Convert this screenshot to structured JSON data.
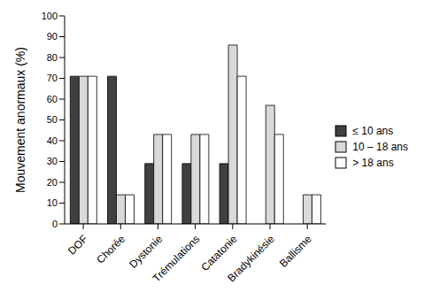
{
  "chart_data": {
    "type": "bar",
    "y_label": "Mouvement anormaux (%)",
    "categories": [
      "DOF",
      "Chorée",
      "Dystonie",
      "Trémulations",
      "Catatonie",
      "Bradykinésie",
      "Ballisme"
    ],
    "series": [
      {
        "name": "≤ 10 ans",
        "color": "#404040",
        "values": [
          71,
          71,
          29,
          29,
          29,
          0,
          0
        ]
      },
      {
        "name": "10 – 18 ans",
        "color": "#d9d9d9",
        "values": [
          71,
          14,
          43,
          43,
          86,
          57,
          14
        ]
      },
      {
        "name": "> 18 ans",
        "color": "#ffffff",
        "values": [
          71,
          14,
          43,
          43,
          71,
          43,
          14
        ]
      }
    ],
    "ylim": [
      0,
      100
    ],
    "yticks": [
      0,
      10,
      20,
      30,
      40,
      50,
      60,
      70,
      80,
      90,
      100
    ],
    "grid": false,
    "legend": "right"
  }
}
